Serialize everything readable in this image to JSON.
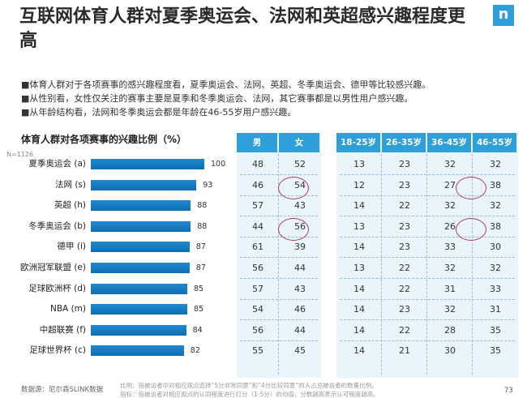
{
  "title": "互联网体育人群对夏季奥运会、法网和英超感兴趣程度更高",
  "logo": "n",
  "bullets": [
    "■体育人群对于各项赛事的感兴趣程度看，夏季奥运会、法网、英超、冬季奥运会、德甲等比较感兴趣。",
    "■从性别看，女性仅关注的赛事主要是夏季和冬季奥运会、法网，其它赛事都是以男性用户感兴趣。",
    "■从年龄结构看，法网和冬季奥运会都是年龄在46-55岁用户感兴趣。"
  ],
  "chart_data": {
    "type": "bar",
    "title": "体育人群对各项赛事的兴趣比例（%）",
    "n_label": "N=1126",
    "categories": [
      "夏季奥运会 (a)",
      "法网 (s)",
      "英超 (h)",
      "冬季奥运会 (b)",
      "德甲 (i)",
      "欧洲冠军联盟 (e)",
      "足球欧洲杯 (d)",
      "NBA (m)",
      "中超联赛 (f)",
      "足球世界杯 (c)"
    ],
    "values": [
      100,
      93,
      88,
      88,
      87,
      87,
      85,
      85,
      84,
      82
    ],
    "xlim": [
      0,
      100
    ],
    "orientation": "horizontal"
  },
  "gender_table": {
    "headers": [
      "男",
      "女"
    ],
    "rows": [
      [
        "48",
        "52"
      ],
      [
        "46",
        "54"
      ],
      [
        "57",
        "43"
      ],
      [
        "44",
        "56"
      ],
      [
        "61",
        "39"
      ],
      [
        "56",
        "44"
      ],
      [
        "57",
        "43"
      ],
      [
        "54",
        "46"
      ],
      [
        "56",
        "44"
      ],
      [
        "55",
        "45"
      ]
    ]
  },
  "age_table": {
    "headers": [
      "18-25岁",
      "26-35岁",
      "36-45岁",
      "46-55岁"
    ],
    "rows": [
      [
        "13",
        "23",
        "32",
        "32"
      ],
      [
        "12",
        "23",
        "27",
        "38"
      ],
      [
        "14",
        "22",
        "32",
        "32"
      ],
      [
        "13",
        "23",
        "26",
        "38"
      ],
      [
        "14",
        "23",
        "33",
        "30"
      ],
      [
        "13",
        "22",
        "32",
        "32"
      ],
      [
        "14",
        "22",
        "31",
        "33"
      ],
      [
        "14",
        "23",
        "32",
        "31"
      ],
      [
        "14",
        "22",
        "28",
        "35"
      ],
      [
        "14",
        "21",
        "30",
        "35"
      ]
    ]
  },
  "highlight_color": "#b23a5c",
  "bar_color": "#1478c0",
  "header_color": "#2e9fd8",
  "source": "数据源：尼尔森SLINK数据",
  "notes": [
    "比例：指被访者中对相应观点选择“5分非常同意”和“4分比较同意”的人占总被访者的数量比例。",
    "指标：指被访者对相应观点的认同程度进行打分（1-5分）的均值，分数越高表示认可程度越高。"
  ],
  "page_number": "73"
}
